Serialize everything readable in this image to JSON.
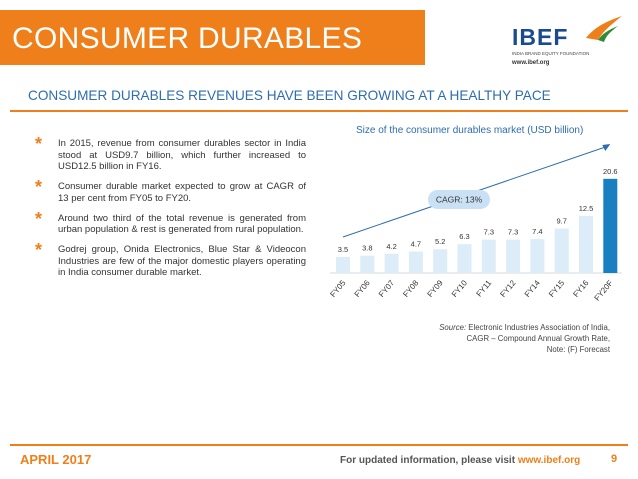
{
  "header": {
    "title": "CONSUMER DURABLES",
    "logo_text": "IBEF",
    "logo_sub": "INDIA BRAND EQUITY FOUNDATION",
    "logo_url": "www.ibef.org"
  },
  "subtitle": "CONSUMER DURABLES REVENUES HAVE BEEN GROWING AT A HEALTHY PACE",
  "bullets": [
    "In 2015, revenue from consumer durables sector in India stood at USD9.7 billion, which further increased to USD12.5 billion in FY16.",
    "Consumer durable market expected to grow at CAGR of 13 per cent from FY05 to FY20.",
    "Around two third of the total revenue is generated from urban population & rest is generated from rural population.",
    "Godrej group, Onida Electronics, Blue Star & Videocon Industries are few of the major domestic players operating in India consumer durable market."
  ],
  "bullet_symbol": "*",
  "chart_data": {
    "type": "bar",
    "title": "Size of the consumer durables market (USD billion)",
    "categories": [
      "FY05",
      "FY06",
      "FY07",
      "FY08",
      "FY09",
      "FY10",
      "FY11",
      "FY12",
      "FY14",
      "FY15",
      "FY16",
      "FY20F"
    ],
    "values": [
      3.5,
      3.8,
      4.2,
      4.7,
      5.2,
      6.3,
      7.3,
      7.3,
      7.4,
      9.7,
      12.5,
      20.6
    ],
    "value_labels": [
      "3.5",
      "3.8",
      "4.2",
      "4.7",
      "5.2",
      "6.3",
      "7.3",
      "7.3",
      "7.4",
      "9.7",
      "12.5",
      "20.6"
    ],
    "ylim": [
      0,
      21
    ],
    "annotation": "CAGR: 13%",
    "colors": {
      "regular": "#dcecf8",
      "highlight": "#1a7fc1",
      "arrow": "#2e6dae",
      "annotation_bg": "#c9e0f5"
    },
    "highlight_index": 11
  },
  "source": {
    "label": "Source:",
    "line1": " Electronic Industries Association of India,",
    "line2": "CAGR – Compound Annual Growth Rate,",
    "line3": "Note: (F) Forecast"
  },
  "footer": {
    "date": "APRIL 2017",
    "info_prefix": "For updated information, please visit ",
    "info_url": "www.ibef.org",
    "page": "9"
  }
}
